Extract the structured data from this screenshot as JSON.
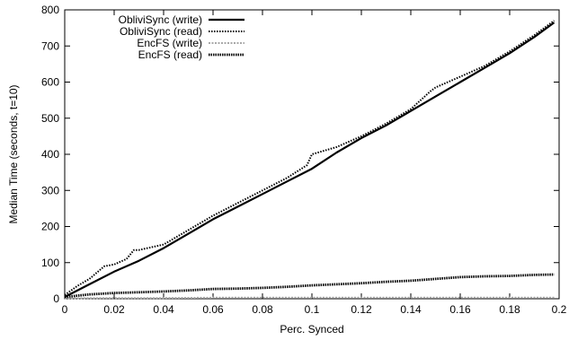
{
  "chart_data": {
    "type": "line",
    "title": "",
    "xlabel": "Perc. Synced",
    "ylabel": "Median Time (seconds, t=10)",
    "xlim": [
      0,
      0.2
    ],
    "ylim": [
      0,
      800
    ],
    "xticks": [
      0,
      0.02,
      0.04,
      0.06,
      0.08,
      0.1,
      0.12,
      0.14,
      0.16,
      0.18,
      0.2
    ],
    "xtick_labels": [
      "0",
      "0.02",
      "0.04",
      "0.06",
      "0.08",
      "0.1",
      "0.12",
      "0.14",
      "0.16",
      "0.18",
      "0.2"
    ],
    "yticks": [
      0,
      100,
      200,
      300,
      400,
      500,
      600,
      700,
      800
    ],
    "ytick_labels": [
      "0",
      "100",
      "200",
      "300",
      "400",
      "500",
      "600",
      "700",
      "800"
    ],
    "grid": false,
    "legend_position": "top-left",
    "series": [
      {
        "name": "ObliviSync (write)",
        "color": "#000000",
        "style": "solid-thick",
        "x": [
          0,
          0.01,
          0.02,
          0.03,
          0.04,
          0.05,
          0.06,
          0.07,
          0.08,
          0.09,
          0.1,
          0.11,
          0.12,
          0.13,
          0.14,
          0.15,
          0.16,
          0.17,
          0.18,
          0.19,
          0.198
        ],
        "y": [
          5,
          40,
          75,
          105,
          140,
          180,
          220,
          255,
          290,
          325,
          360,
          405,
          445,
          480,
          520,
          560,
          600,
          640,
          680,
          725,
          765
        ]
      },
      {
        "name": "ObliviSync (read)",
        "color": "#000000",
        "style": "dotted",
        "x": [
          0,
          0.005,
          0.01,
          0.016,
          0.02,
          0.025,
          0.028,
          0.03,
          0.04,
          0.05,
          0.06,
          0.07,
          0.08,
          0.09,
          0.098,
          0.1,
          0.11,
          0.12,
          0.13,
          0.14,
          0.148,
          0.15,
          0.16,
          0.17,
          0.18,
          0.19,
          0.198
        ],
        "y": [
          10,
          35,
          55,
          90,
          95,
          110,
          135,
          135,
          150,
          190,
          230,
          265,
          300,
          335,
          370,
          400,
          420,
          450,
          485,
          525,
          575,
          585,
          615,
          645,
          685,
          730,
          770
        ]
      },
      {
        "name": "EncFS (write)",
        "color": "#a8a8a8",
        "style": "dotted-gray",
        "x": [
          0,
          0.02,
          0.04,
          0.06,
          0.08,
          0.1,
          0.12,
          0.14,
          0.16,
          0.18,
          0.198
        ],
        "y": [
          1,
          2,
          2,
          3,
          3,
          3,
          3,
          3,
          3,
          3,
          3
        ]
      },
      {
        "name": "EncFS (read)",
        "color": "#000000",
        "style": "dense-dotted",
        "x": [
          0,
          0.01,
          0.02,
          0.03,
          0.04,
          0.05,
          0.06,
          0.07,
          0.08,
          0.09,
          0.1,
          0.11,
          0.12,
          0.13,
          0.14,
          0.15,
          0.16,
          0.17,
          0.18,
          0.19,
          0.198
        ],
        "y": [
          5,
          12,
          16,
          18,
          20,
          23,
          27,
          28,
          30,
          33,
          37,
          40,
          43,
          47,
          50,
          55,
          60,
          62,
          63,
          66,
          67
        ]
      }
    ]
  }
}
